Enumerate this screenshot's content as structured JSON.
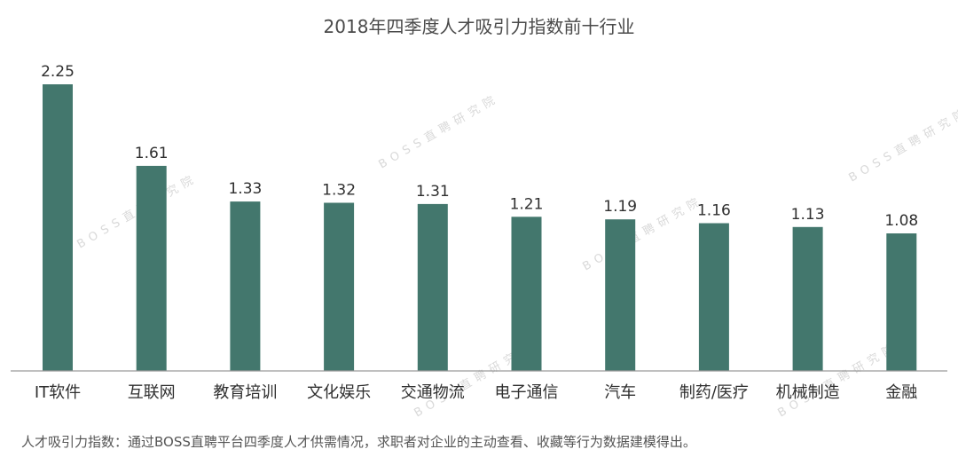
{
  "chart_data": {
    "type": "bar",
    "title": "2018年四季度人才吸引力指数前十行业",
    "categories": [
      "IT软件",
      "互联网",
      "教育培训",
      "文化娱乐",
      "交通物流",
      "电子通信",
      "汽车",
      "制药/医疗",
      "机械制造",
      "金融"
    ],
    "values": [
      2.25,
      1.61,
      1.33,
      1.32,
      1.31,
      1.21,
      1.19,
      1.16,
      1.13,
      1.08
    ],
    "value_labels": [
      "2.25",
      "1.61",
      "1.33",
      "1.32",
      "1.31",
      "1.21",
      "1.19",
      "1.16",
      "1.13",
      "1.08"
    ],
    "xlabel": "",
    "ylabel": "",
    "ylim": [
      0,
      2.25
    ],
    "grid": false,
    "legend": "none",
    "bar_color": "#43776d",
    "footnote": "人才吸引力指数：通过BOSS直聘平台四季度人才供需情况，求职者对企业的主动查看、收藏等行为数据建模得出。",
    "watermark": "BOSS直聘研究院"
  }
}
